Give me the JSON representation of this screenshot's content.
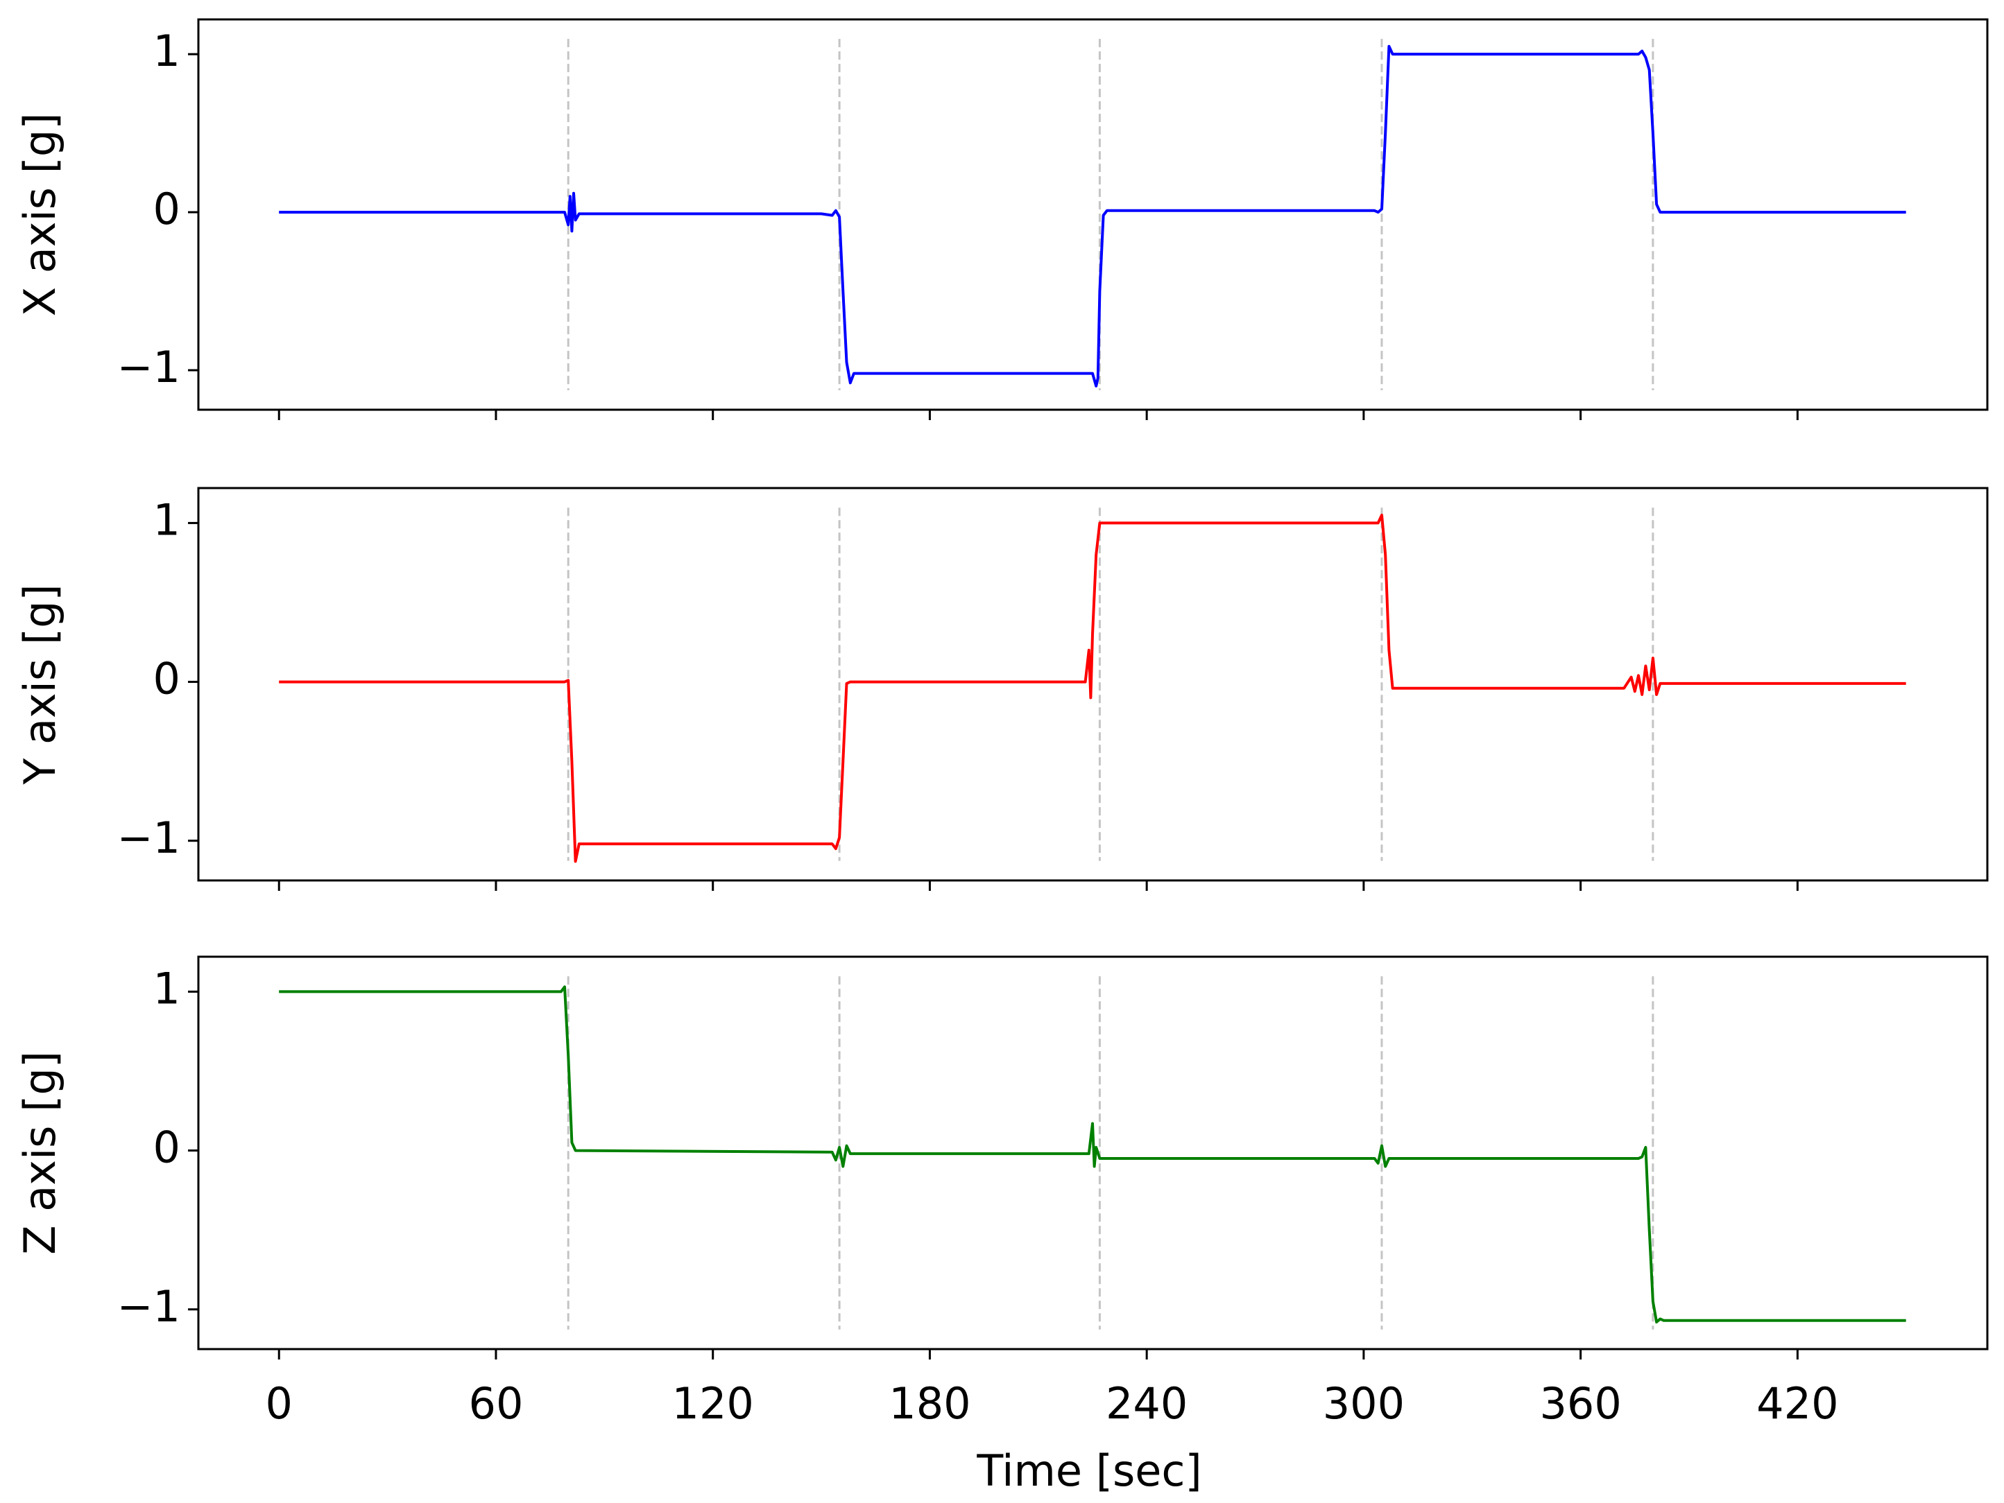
{
  "chart_data": [
    {
      "type": "line",
      "ylabel": "X axis [g]",
      "color": "#0000ff",
      "x": [
        0,
        79,
        80,
        80.5,
        81,
        81.5,
        82,
        83,
        150,
        153,
        154,
        155,
        156,
        157,
        158,
        159,
        225,
        226,
        226.5,
        227,
        228,
        229,
        303,
        304,
        305,
        306,
        307,
        308,
        376,
        377,
        378,
        379,
        380,
        381,
        382,
        450
      ],
      "values": [
        0,
        0,
        -0.08,
        0.1,
        -0.12,
        0.12,
        -0.05,
        -0.01,
        -0.01,
        -0.02,
        0.01,
        -0.03,
        -0.5,
        -0.95,
        -1.08,
        -1.02,
        -1.02,
        -1.1,
        -1.05,
        -0.5,
        -0.02,
        0.01,
        0.01,
        0.0,
        0.02,
        0.5,
        1.05,
        1.0,
        1.0,
        1.02,
        0.98,
        0.9,
        0.5,
        0.05,
        0,
        0
      ],
      "vlines": [
        80,
        155,
        227,
        305,
        380
      ],
      "xlim": [
        -22.3,
        472.5
      ],
      "ylim": [
        -1.25,
        1.22
      ],
      "xticks": [
        0,
        60,
        120,
        180,
        240,
        300,
        360,
        420
      ],
      "yticks": [
        {
          "value": -1,
          "label": "−1"
        },
        0,
        1
      ]
    },
    {
      "type": "line",
      "ylabel": "Y axis [g]",
      "color": "#ff0000",
      "x": [
        0,
        79,
        80,
        81,
        82,
        83,
        84,
        153,
        154,
        155,
        156,
        157,
        158,
        223,
        224,
        224.5,
        225,
        226,
        227,
        228,
        229,
        304,
        305,
        306,
        307,
        308,
        309,
        372,
        374,
        375,
        376,
        377,
        378,
        379,
        380,
        381,
        382,
        450
      ],
      "values": [
        0,
        0,
        0.01,
        -0.5,
        -1.13,
        -1.02,
        -1.02,
        -1.02,
        -1.05,
        -0.98,
        -0.5,
        -0.01,
        0,
        0,
        0.2,
        -0.1,
        0.3,
        0.8,
        1.0,
        1.0,
        1.0,
        1.0,
        1.05,
        0.8,
        0.2,
        -0.04,
        -0.04,
        -0.04,
        0.03,
        -0.06,
        0.04,
        -0.08,
        0.1,
        -0.05,
        0.15,
        -0.08,
        -0.01,
        -0.01
      ],
      "vlines": [
        80,
        155,
        227,
        305,
        380
      ],
      "xlim": [
        -22.3,
        472.5
      ],
      "ylim": [
        -1.25,
        1.22
      ],
      "xticks": [
        0,
        60,
        120,
        180,
        240,
        300,
        360,
        420
      ],
      "yticks": [
        {
          "value": -1,
          "label": "−1"
        },
        0,
        1
      ]
    },
    {
      "type": "line",
      "ylabel": "Z axis [g]",
      "xlabel": "Time [sec]",
      "color": "#008000",
      "x": [
        0,
        78,
        79,
        80,
        81,
        82,
        153,
        154,
        155,
        156,
        157,
        158,
        224,
        225,
        225.5,
        226,
        227,
        303,
        304,
        305,
        306,
        307,
        376,
        377,
        378,
        379,
        380,
        381,
        382,
        383,
        450
      ],
      "values": [
        1,
        1,
        1.03,
        0.6,
        0.05,
        0,
        -0.01,
        -0.06,
        0.02,
        -0.1,
        0.03,
        -0.02,
        -0.02,
        0.17,
        -0.1,
        0.02,
        -0.05,
        -0.05,
        -0.08,
        0.03,
        -0.1,
        -0.05,
        -0.05,
        -0.04,
        0.02,
        -0.5,
        -0.95,
        -1.08,
        -1.06,
        -1.07,
        -1.07
      ],
      "vlines": [
        80,
        155,
        227,
        305,
        380
      ],
      "xlim": [
        -22.3,
        472.5
      ],
      "ylim": [
        -1.25,
        1.22
      ],
      "xticks": [
        0,
        60,
        120,
        180,
        240,
        300,
        360,
        420
      ],
      "yticks": [
        {
          "value": -1,
          "label": "−1"
        },
        0,
        1
      ]
    }
  ]
}
